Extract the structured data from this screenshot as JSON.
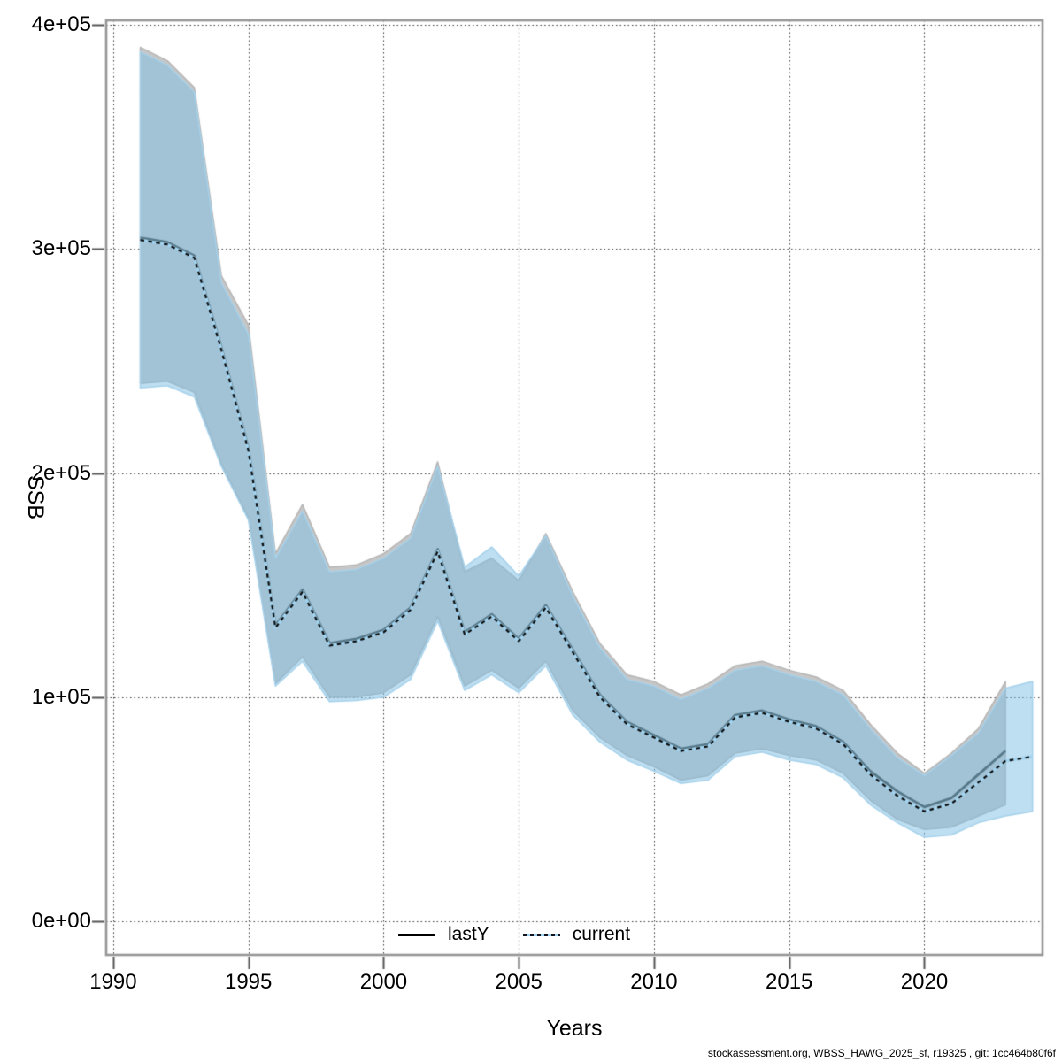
{
  "figure": {
    "footer": "stockassessment.org, WBSS_HAWG_2025_sf, r19325 , git: 1cc464b80f6f"
  },
  "legend": {
    "items": [
      {
        "label": "lastY",
        "style": "solid-black-line"
      },
      {
        "label": "current",
        "style": "dotted-blue-line"
      }
    ]
  },
  "chart_data": {
    "type": "line",
    "title": "",
    "xlabel": "Years",
    "ylabel": "SSB",
    "grid": true,
    "legend_position": "bottom-center-inside",
    "xlim": [
      1989.74,
      2024.37
    ],
    "ylim": [
      -15000,
      402000
    ],
    "x_ticks": [
      1990,
      1995,
      2000,
      2005,
      2010,
      2015,
      2020
    ],
    "y_ticks": [
      {
        "value": 0,
        "label": "0e+00"
      },
      {
        "value": 100000,
        "label": "1e+05"
      },
      {
        "value": 200000,
        "label": "2e+05"
      },
      {
        "value": 300000,
        "label": "3e+05"
      },
      {
        "value": 400000,
        "label": "4e+05"
      }
    ],
    "series": [
      {
        "name": "lastY",
        "line": "solid",
        "years": [
          1991,
          1992,
          1993,
          1994,
          1995,
          1996,
          1997,
          1998,
          1999,
          2000,
          2001,
          2002,
          2003,
          2004,
          2005,
          2006,
          2007,
          2008,
          2009,
          2010,
          2011,
          2012,
          2013,
          2014,
          2015,
          2016,
          2017,
          2018,
          2019,
          2020,
          2021,
          2022,
          2023
        ],
        "median": [
          305000,
          303000,
          297000,
          256000,
          211000,
          132000,
          148000,
          124000,
          126000,
          130000,
          140000,
          166000,
          129000,
          137000,
          126000,
          141000,
          121000,
          101000,
          89000,
          83000,
          77000,
          79000,
          92000,
          94000,
          90000,
          87000,
          80000,
          67000,
          58000,
          51000,
          55000,
          65500,
          76000
        ],
        "hi": [
          390000,
          384000,
          372000,
          288000,
          266000,
          164000,
          186000,
          158000,
          159000,
          164000,
          173000,
          205000,
          156000,
          162000,
          152000,
          173000,
          147000,
          124000,
          110000,
          107000,
          101000,
          106000,
          114000,
          116000,
          112000,
          109000,
          103000,
          88000,
          75000,
          66000,
          75000,
          86000,
          107000
        ],
        "lo": [
          240000,
          241000,
          236000,
          204000,
          180000,
          106000,
          118000,
          100000,
          100000,
          102000,
          110000,
          136000,
          105000,
          112000,
          104000,
          116000,
          94000,
          82000,
          74000,
          69000,
          63000,
          65000,
          75000,
          77000,
          74000,
          72000,
          66000,
          54000,
          45500,
          41000,
          42000,
          47000,
          52000
        ]
      },
      {
        "name": "current",
        "line": "dotted",
        "years": [
          1991,
          1992,
          1993,
          1994,
          1995,
          1996,
          1997,
          1998,
          1999,
          2000,
          2001,
          2002,
          2003,
          2004,
          2005,
          2006,
          2007,
          2008,
          2009,
          2010,
          2011,
          2012,
          2013,
          2014,
          2015,
          2016,
          2017,
          2018,
          2019,
          2020,
          2021,
          2022,
          2023,
          2024
        ],
        "median": [
          304000,
          302000,
          296000,
          255000,
          210000,
          131000,
          147000,
          123000,
          125000,
          129000,
          139000,
          165000,
          128000,
          136000,
          125000,
          140000,
          120000,
          100000,
          88000,
          82000,
          76000,
          78000,
          91000,
          93000,
          89000,
          86000,
          79000,
          65500,
          56000,
          49000,
          52500,
          62000,
          71500,
          73500
        ],
        "hi": [
          388000,
          382000,
          370000,
          285000,
          262000,
          162000,
          183000,
          156000,
          157000,
          162000,
          171000,
          203000,
          158000,
          167000,
          154000,
          172000,
          145000,
          122000,
          108000,
          105000,
          99000,
          104000,
          112000,
          114000,
          110000,
          107000,
          101000,
          86000,
          73000,
          65000,
          74000,
          84000,
          104000,
          107000
        ],
        "lo": [
          238000,
          239000,
          234000,
          203000,
          179000,
          105000,
          116000,
          98000,
          98500,
          100000,
          108000,
          134000,
          103000,
          110000,
          102000,
          114000,
          92000,
          80000,
          72000,
          67000,
          61500,
          63000,
          73500,
          75500,
          72000,
          70000,
          64000,
          52000,
          44000,
          37500,
          38500,
          44000,
          47000,
          49000
        ]
      }
    ],
    "colors": {
      "lastY_band": "#c7c7c7",
      "lastY_band_edge": "#b5b5b5",
      "lastY_line": "#56798a",
      "current_band": "#7dbee4",
      "current_band_alpha": 0.5,
      "current_band_edge": "#a5d2ec",
      "current_line_base": "#a3d4f0",
      "current_line_dash": "#0a0a0a",
      "grid": "#3a3a3a",
      "border": "#969696",
      "tick": "#555555",
      "text": "#000000"
    }
  }
}
